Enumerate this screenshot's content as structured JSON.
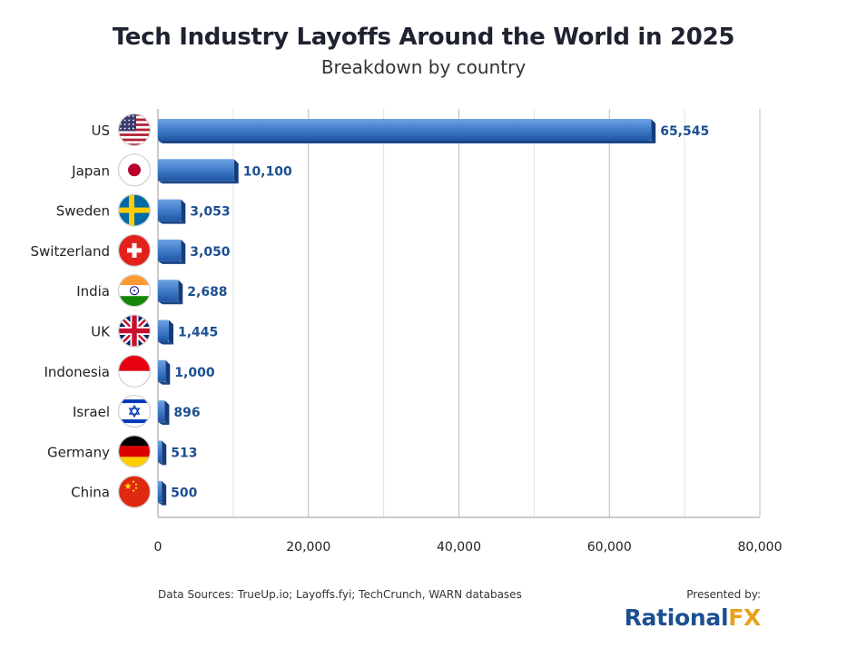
{
  "header": {
    "title": "Tech Industry Layoffs Around the World in 2025",
    "subtitle": "Breakdown by country"
  },
  "footer": {
    "sources": "Data Sources: TrueUp.io; Layoffs.fyi; TechCrunch, WARN databases",
    "presented_by": "Presented by:",
    "logo_part1": "Rational",
    "logo_part2": "FX"
  },
  "colors": {
    "bar_light": "#5b93d6",
    "bar_dark": "#1c4d96",
    "bar_side": "#153c7c",
    "value_label": "#1d4f91",
    "logo_blue": "#1d4f91",
    "logo_orange": "#e8a21a"
  },
  "chart_data": {
    "type": "bar",
    "orientation": "horizontal",
    "title": "Tech Industry Layoffs Around the World in 2025",
    "subtitle": "Breakdown by country",
    "categories": [
      "US",
      "Japan",
      "Sweden",
      "Switzerland",
      "India",
      "UK",
      "Indonesia",
      "Israel",
      "Germany",
      "China"
    ],
    "values": [
      65545,
      10100,
      3053,
      3050,
      2688,
      1445,
      1000,
      896,
      513,
      500
    ],
    "value_labels": [
      "65,545",
      "10,100",
      "3,053",
      "3,050",
      "2,688",
      "1,445",
      "1,000",
      "896",
      "513",
      "500"
    ],
    "flags": [
      "us-flag-icon",
      "japan-flag-icon",
      "sweden-flag-icon",
      "switzerland-flag-icon",
      "india-flag-icon",
      "uk-flag-icon",
      "indonesia-flag-icon",
      "israel-flag-icon",
      "germany-flag-icon",
      "china-flag-icon"
    ],
    "xlim": [
      0,
      80000
    ],
    "x_ticks": [
      0,
      20000,
      40000,
      60000,
      80000
    ],
    "x_tick_labels": [
      "0",
      "20,000",
      "40,000",
      "60,000",
      "80,000"
    ],
    "grid": true,
    "legend": "none"
  }
}
